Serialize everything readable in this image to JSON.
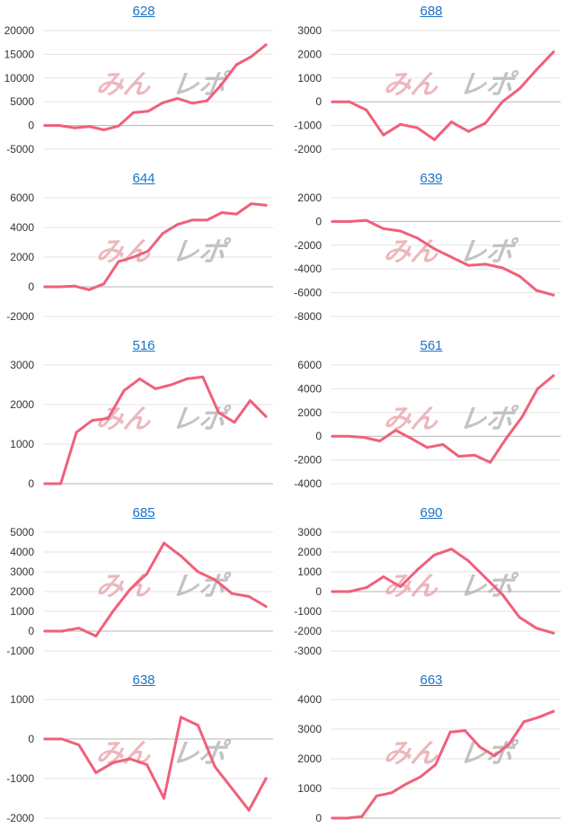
{
  "watermark": {
    "text_red": "みん",
    "text_grey": "レポ"
  },
  "colors": {
    "line": "#f0607a",
    "link": "#1a73c9",
    "grid": "#e3e3e3"
  },
  "chart_data": [
    {
      "type": "line",
      "title": "628",
      "ylim": [
        -5000,
        20000
      ],
      "yticks": [
        20000,
        15000,
        10000,
        5000,
        0,
        -5000
      ],
      "values": [
        0,
        0,
        -500,
        -200,
        -900,
        -100,
        2700,
        3000,
        4800,
        5700,
        4700,
        5200,
        8700,
        12800,
        14500,
        17000
      ]
    },
    {
      "type": "line",
      "title": "688",
      "ylim": [
        -2000,
        3000
      ],
      "yticks": [
        3000,
        2000,
        1000,
        0,
        -1000,
        -2000
      ],
      "values": [
        0,
        0,
        -350,
        -1400,
        -950,
        -1100,
        -1600,
        -850,
        -1250,
        -900,
        0,
        550,
        1350,
        2100
      ]
    },
    {
      "type": "line",
      "title": "644",
      "ylim": [
        -2000,
        6000
      ],
      "yticks": [
        6000,
        4000,
        2000,
        0,
        -2000
      ],
      "values": [
        0,
        0,
        50,
        -200,
        200,
        1700,
        2000,
        2400,
        3600,
        4200,
        4500,
        4500,
        5000,
        4900,
        5600,
        5500
      ]
    },
    {
      "type": "line",
      "title": "639",
      "ylim": [
        -8000,
        2000
      ],
      "yticks": [
        2000,
        0,
        -2000,
        -4000,
        -6000,
        -8000
      ],
      "values": [
        0,
        0,
        100,
        -600,
        -800,
        -1400,
        -2300,
        -3000,
        -3700,
        -3600,
        -3900,
        -4600,
        -5800,
        -6200
      ]
    },
    {
      "type": "line",
      "title": "516",
      "ylim": [
        0,
        3000
      ],
      "yticks": [
        3000,
        2000,
        1000,
        0
      ],
      "values": [
        0,
        0,
        1300,
        1600,
        1650,
        2350,
        2650,
        2400,
        2500,
        2650,
        2700,
        1800,
        1550,
        2100,
        1700
      ]
    },
    {
      "type": "line",
      "title": "561",
      "ylim": [
        -4000,
        6000
      ],
      "yticks": [
        6000,
        4000,
        2000,
        0,
        -2000,
        -4000
      ],
      "values": [
        0,
        0,
        -100,
        -400,
        500,
        -200,
        -950,
        -700,
        -1700,
        -1600,
        -2200,
        -200,
        1600,
        4000,
        5100
      ]
    },
    {
      "type": "line",
      "title": "685",
      "ylim": [
        -1000,
        5000
      ],
      "yticks": [
        5000,
        4000,
        3000,
        2000,
        1000,
        0,
        -1000
      ],
      "values": [
        0,
        0,
        150,
        -250,
        1000,
        2100,
        2900,
        4450,
        3800,
        3000,
        2600,
        1900,
        1750,
        1250
      ]
    },
    {
      "type": "line",
      "title": "690",
      "ylim": [
        -3000,
        3000
      ],
      "yticks": [
        3000,
        2000,
        1000,
        0,
        -1000,
        -2000,
        -3000
      ],
      "values": [
        0,
        0,
        200,
        750,
        250,
        1100,
        1850,
        2150,
        1550,
        700,
        -150,
        -1300,
        -1850,
        -2100
      ]
    },
    {
      "type": "line",
      "title": "638",
      "ylim": [
        -2000,
        1000
      ],
      "yticks": [
        1000,
        0,
        -1000,
        -2000
      ],
      "values": [
        0,
        0,
        -150,
        -850,
        -600,
        -500,
        -650,
        -1500,
        550,
        350,
        -700,
        -1250,
        -1800,
        -1000
      ]
    },
    {
      "type": "line",
      "title": "663",
      "ylim": [
        0,
        4000
      ],
      "yticks": [
        4000,
        3000,
        2000,
        1000,
        0
      ],
      "values": [
        0,
        0,
        50,
        750,
        850,
        1150,
        1400,
        1800,
        2900,
        2950,
        2400,
        2100,
        2500,
        3250,
        3400,
        3600
      ]
    }
  ]
}
